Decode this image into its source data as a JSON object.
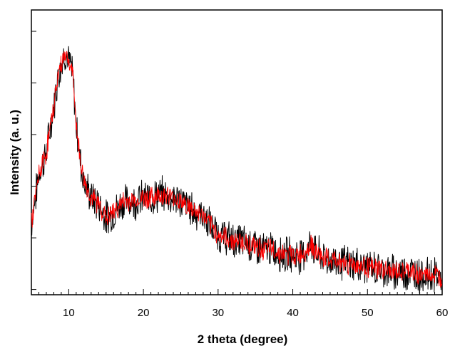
{
  "chart_data": {
    "type": "line",
    "title": "",
    "xlabel": "2 theta (degree)",
    "ylabel": "Intensity (a. u.)",
    "xlim": [
      5,
      60
    ],
    "ylim": [
      0,
      100
    ],
    "x_ticks": [
      10,
      20,
      30,
      40,
      50,
      60
    ],
    "y_tick_labels_shown": false,
    "grid": false,
    "legend": "none",
    "series": [
      {
        "color": "#000000",
        "x": [
          5,
          6,
          7,
          8,
          8.5,
          9,
          9.5,
          10,
          10.5,
          11,
          11.5,
          12,
          13,
          14,
          15,
          16,
          17,
          18,
          19,
          20,
          21,
          22,
          23,
          24,
          25,
          26,
          27,
          28,
          29,
          30,
          31,
          32,
          33,
          34,
          35,
          36,
          37,
          38,
          39,
          40,
          41,
          42,
          42.5,
          43,
          44,
          45,
          46,
          47,
          48,
          49,
          50,
          51,
          52,
          53,
          54,
          55,
          56,
          57,
          58,
          59,
          60
        ],
        "y": [
          25,
          42,
          50,
          66,
          76,
          81,
          85,
          82,
          78,
          60,
          48,
          40,
          34,
          32,
          27,
          29,
          32,
          33,
          33,
          34,
          34,
          35,
          35,
          34,
          33,
          31,
          29,
          28,
          24,
          21,
          20,
          19,
          19,
          18,
          17,
          16,
          16,
          15,
          14,
          14,
          14,
          16,
          18,
          15,
          13,
          12,
          12,
          11,
          11,
          10,
          10,
          9,
          9,
          8,
          8,
          8,
          8,
          7,
          7,
          7,
          6
        ]
      },
      {
        "color": "#ff0000",
        "x": [
          5,
          6,
          7,
          8,
          8.5,
          9,
          9.5,
          10,
          10.5,
          11,
          11.5,
          12,
          13,
          14,
          15,
          16,
          17,
          18,
          19,
          20,
          21,
          22,
          23,
          24,
          25,
          26,
          27,
          28,
          29,
          30,
          31,
          32,
          33,
          34,
          35,
          36,
          37,
          38,
          39,
          40,
          41,
          42,
          42.5,
          43,
          44,
          45,
          46,
          47,
          48,
          49,
          50,
          51,
          52,
          53,
          54,
          55,
          56,
          57,
          58,
          59,
          60
        ],
        "y": [
          25,
          42,
          50,
          66,
          76,
          81,
          85,
          82,
          78,
          60,
          48,
          40,
          34,
          32,
          27,
          29,
          32,
          33,
          33,
          34,
          34,
          35,
          35,
          34,
          33,
          31,
          29,
          28,
          24,
          21,
          20,
          19,
          19,
          18,
          17,
          16,
          16,
          15,
          14,
          14,
          14,
          16,
          18,
          15,
          13,
          12,
          12,
          11,
          11,
          10,
          10,
          9,
          9,
          8,
          8,
          8,
          8,
          7,
          7,
          7,
          6
        ]
      }
    ]
  }
}
